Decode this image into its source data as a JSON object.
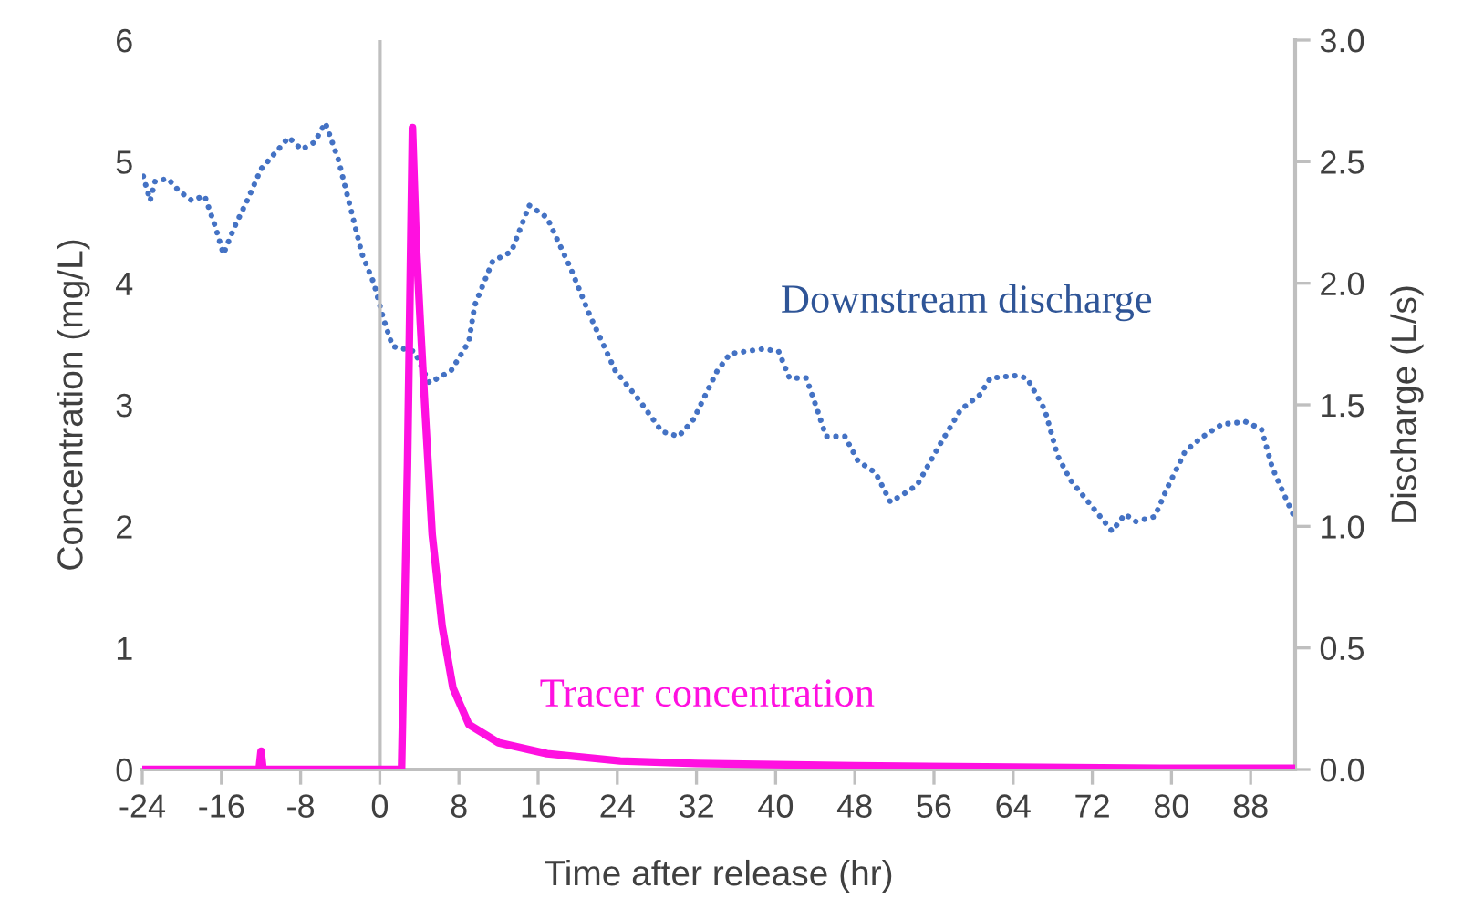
{
  "chart_data": {
    "type": "line",
    "xlabel": "Time after release (hr)",
    "ylabel": "Concentration (mg/L)",
    "y2label": "Discharge (L/s)",
    "xlim": [
      -24,
      92.5
    ],
    "xticks": [
      -24,
      -16,
      -8,
      0,
      8,
      16,
      24,
      32,
      40,
      48,
      56,
      64,
      72,
      80,
      88
    ],
    "ylim": [
      0,
      6
    ],
    "yticks": [
      0,
      1,
      2,
      3,
      4,
      5,
      6
    ],
    "y2lim": [
      0,
      3
    ],
    "y2ticks": [
      {
        "value": 0,
        "label": "0.0"
      },
      {
        "value": 0.5,
        "label": "0.5"
      },
      {
        "value": 1,
        "label": "1.0"
      },
      {
        "value": 1.5,
        "label": "1.5"
      },
      {
        "value": 2,
        "label": "2.0"
      },
      {
        "value": 2.5,
        "label": "2.5"
      },
      {
        "value": 3,
        "label": "3.0"
      }
    ],
    "grid": false,
    "legend": false,
    "ref_lines": [
      {
        "axis": "x",
        "value": 0,
        "label": null,
        "color": "#bfbfbf"
      }
    ],
    "series": [
      {
        "name": "Downstream discharge",
        "color": "#4472c4",
        "axis": "y2",
        "line_style": "dotted",
        "x": [
          -23.9,
          -23.2,
          -22.7,
          -21.4,
          -20.3,
          -19.0,
          -17.7,
          -16.6,
          -15.8,
          -14.7,
          -13.4,
          -12.0,
          -10.7,
          -9.2,
          -7.9,
          -6.6,
          -5.5,
          -4.2,
          -2.9,
          -1.8,
          -0.6,
          0.4,
          1.3,
          3.5,
          5.0,
          7.2,
          9.0,
          9.6,
          11.4,
          13.3,
          15.1,
          16.9,
          19.3,
          21.2,
          23.8,
          26.2,
          28.5,
          30.2,
          31.7,
          34.1,
          35.4,
          38.7,
          40.3,
          41.4,
          43.1,
          44.2,
          45.1,
          47.0,
          48.3,
          50.1,
          51.6,
          53.2,
          54.3,
          56.5,
          58.7,
          60.6,
          61.7,
          64.3,
          65.4,
          67.2,
          68.5,
          69.8,
          71.6,
          74.0,
          75.3,
          76.4,
          78.3,
          79.6,
          81.4,
          83.2,
          85.1,
          87.5,
          89.1,
          90.2,
          91.5,
          92.4
        ],
        "values": [
          2.44,
          2.34,
          2.42,
          2.43,
          2.38,
          2.34,
          2.36,
          2.23,
          2.12,
          2.23,
          2.34,
          2.47,
          2.53,
          2.6,
          2.55,
          2.58,
          2.66,
          2.51,
          2.3,
          2.12,
          2.0,
          1.85,
          1.74,
          1.72,
          1.59,
          1.64,
          1.76,
          1.91,
          2.09,
          2.13,
          2.32,
          2.27,
          2.06,
          1.87,
          1.64,
          1.52,
          1.39,
          1.37,
          1.44,
          1.64,
          1.71,
          1.73,
          1.72,
          1.61,
          1.61,
          1.48,
          1.37,
          1.37,
          1.27,
          1.22,
          1.1,
          1.14,
          1.17,
          1.33,
          1.48,
          1.54,
          1.61,
          1.62,
          1.61,
          1.48,
          1.29,
          1.19,
          1.1,
          0.98,
          1.05,
          1.02,
          1.04,
          1.16,
          1.31,
          1.37,
          1.42,
          1.43,
          1.4,
          1.24,
          1.12,
          1.04
        ]
      },
      {
        "name": "Tracer concentration",
        "color": "#ff10e0",
        "line_style": "solid",
        "x": [
          -24,
          -12.2,
          -12,
          -11.8,
          2.2,
          2.8,
          3.3,
          3.7,
          4.1,
          4.6,
          5.3,
          6.3,
          7.4,
          9.0,
          12.0,
          16.9,
          24.3,
          32,
          48,
          64,
          80,
          92.4
        ],
        "values": [
          0,
          0,
          0.15,
          0,
          0,
          2.5,
          5.28,
          4.3,
          3.67,
          2.92,
          1.93,
          1.18,
          0.67,
          0.37,
          0.22,
          0.13,
          0.07,
          0.05,
          0.03,
          0.02,
          0.01,
          0.01
        ]
      }
    ]
  }
}
